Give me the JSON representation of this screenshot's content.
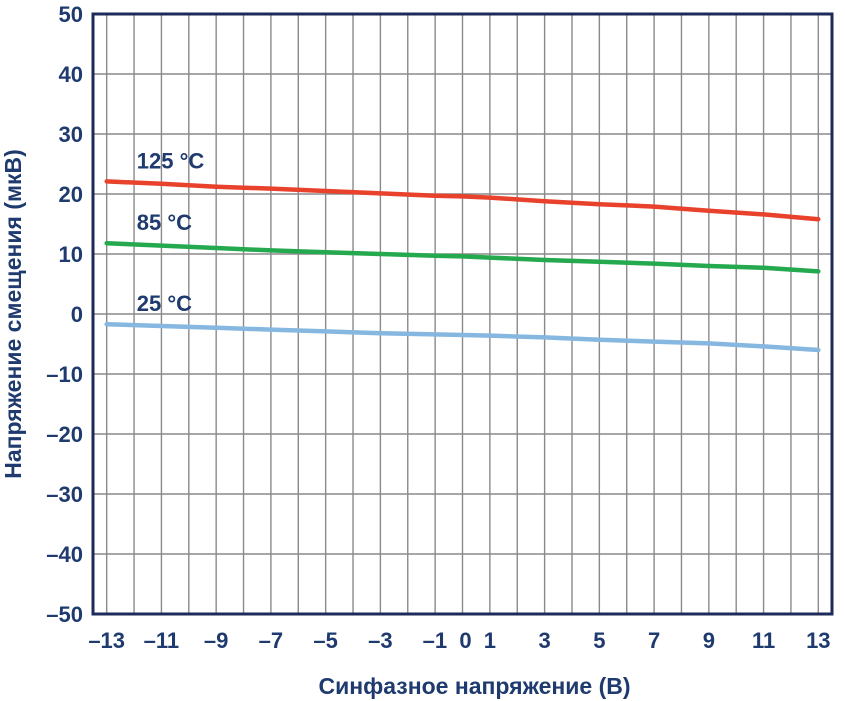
{
  "chart_data": {
    "type": "line",
    "title": "",
    "xlabel": "Синфазное напряжение (В)",
    "ylabel": "Напряжение смещения (мкВ)",
    "xlim": [
      -13.5,
      13.5
    ],
    "ylim": [
      -50,
      50
    ],
    "grid": true,
    "x_ticks": [
      -13,
      -11,
      -9,
      -7,
      -5,
      -3,
      -1,
      0,
      1,
      3,
      5,
      7,
      9,
      11,
      13
    ],
    "x_tick_labels": [
      "–13",
      "–11",
      "–9",
      "–7",
      "–5",
      "–3",
      "–1",
      "0",
      "1",
      "3",
      "5",
      "7",
      "9",
      "11",
      "13"
    ],
    "y_ticks": [
      50,
      40,
      30,
      20,
      10,
      0,
      -10,
      -20,
      -30,
      -40,
      -50
    ],
    "y_tick_labels": [
      "50",
      "40",
      "30",
      "20",
      "10",
      "0",
      "–10",
      "–20",
      "–30",
      "–40",
      "–50"
    ],
    "x": [
      -13,
      -11,
      -9,
      -7,
      -5,
      -3,
      -1,
      0,
      1,
      3,
      5,
      7,
      9,
      11,
      13
    ],
    "series": [
      {
        "name": "125 °C",
        "color": "#e8412c",
        "values": [
          22.1,
          21.7,
          21.2,
          20.9,
          20.5,
          20.1,
          19.7,
          19.6,
          19.4,
          18.8,
          18.3,
          17.9,
          17.2,
          16.6,
          15.8
        ]
      },
      {
        "name": "85 °C",
        "color": "#24a94f",
        "values": [
          11.8,
          11.4,
          11.0,
          10.6,
          10.3,
          10.0,
          9.7,
          9.6,
          9.4,
          9.0,
          8.7,
          8.4,
          8.0,
          7.7,
          7.1
        ]
      },
      {
        "name": "25 °C",
        "color": "#86b7e0",
        "values": [
          -1.7,
          -2.0,
          -2.3,
          -2.6,
          -2.9,
          -3.2,
          -3.4,
          -3.5,
          -3.6,
          -3.9,
          -4.3,
          -4.6,
          -4.9,
          -5.4,
          -6.0
        ]
      }
    ],
    "colors": {
      "axis": "#1e2a5a",
      "grid": "#8a8a8a",
      "text": "#1e3a6e"
    }
  }
}
